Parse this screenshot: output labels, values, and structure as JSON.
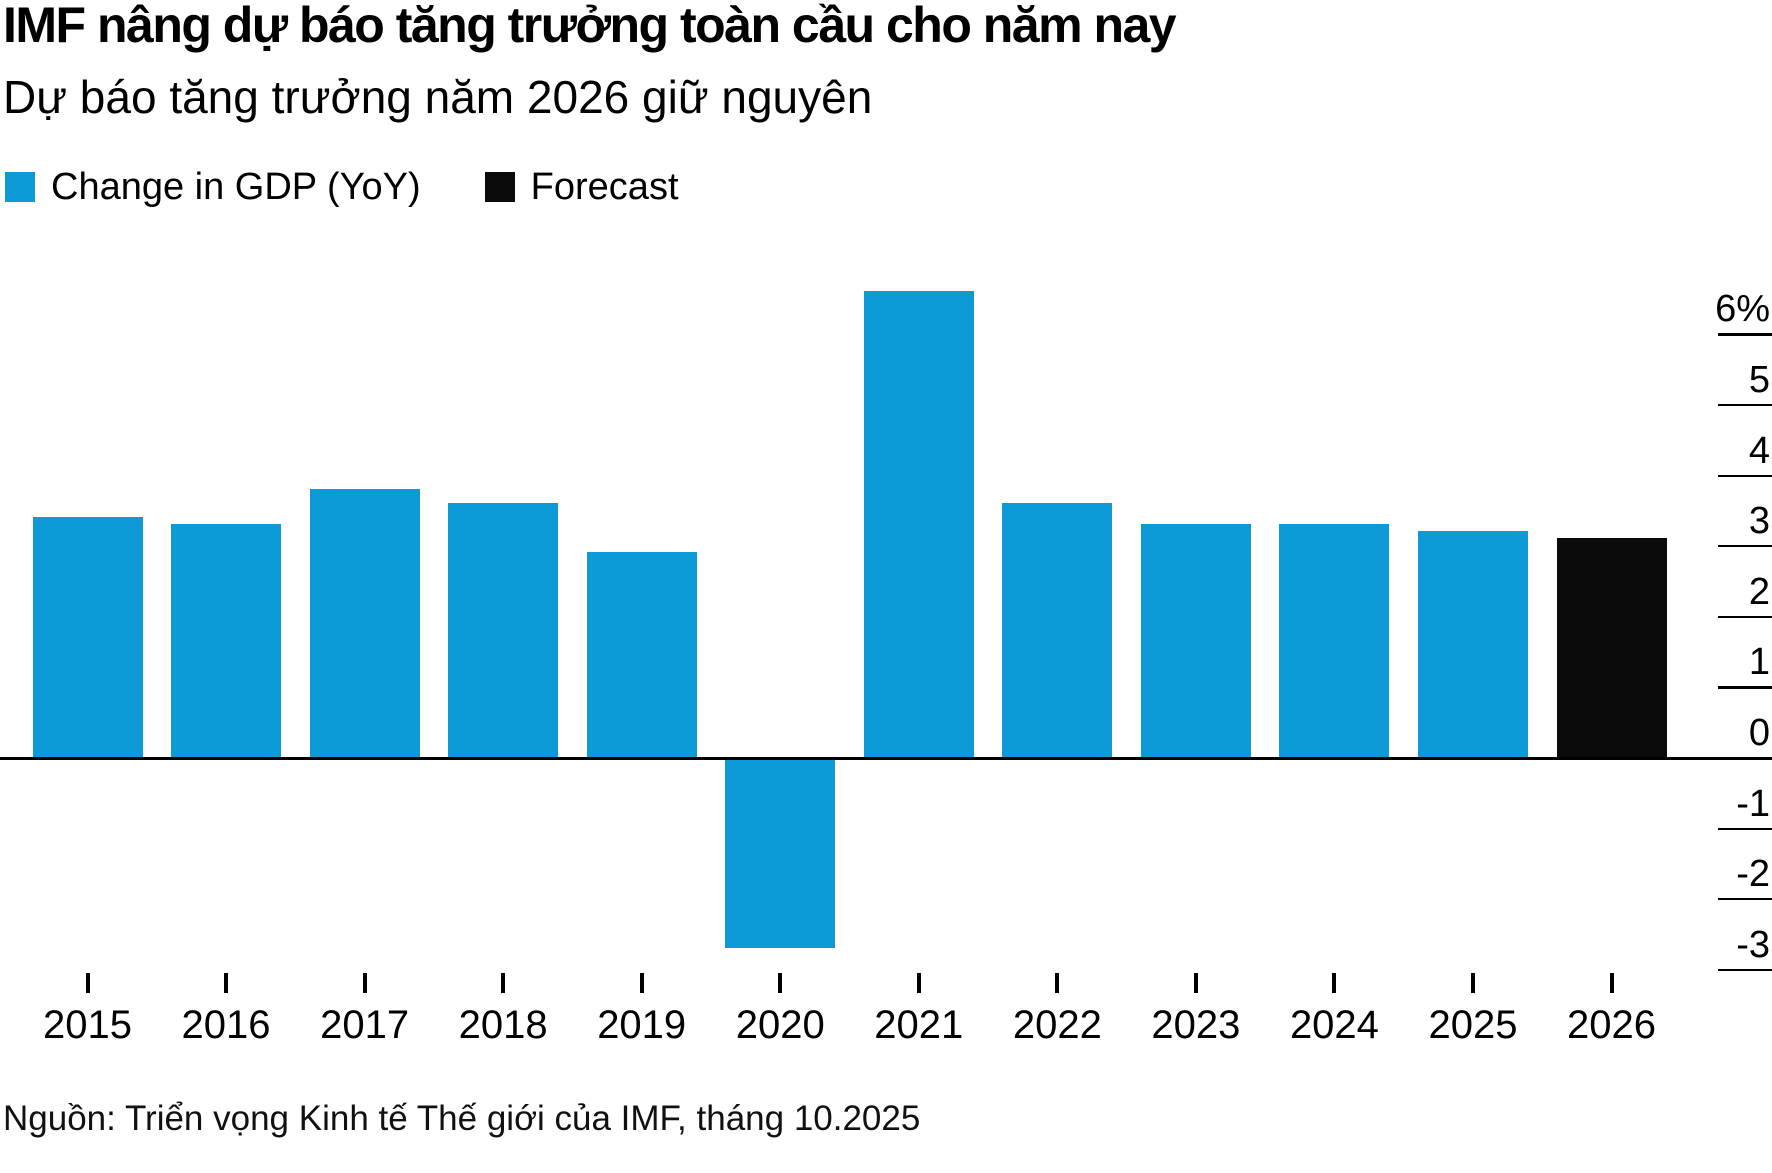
{
  "header": {
    "title": "IMF nâng dự báo tăng trưởng toàn cầu cho năm nay",
    "subtitle": "Dự báo tăng trưởng năm 2026 giữ nguyên"
  },
  "legend": {
    "items": [
      {
        "label": "Change in GDP (YoY)",
        "color": "#0d9ad7"
      },
      {
        "label": "Forecast",
        "color": "#0a0a0a"
      }
    ]
  },
  "colors": {
    "actual_bar": "#0d9ad7",
    "forecast_bar": "#0a0a0a",
    "axis": "#000000"
  },
  "chart_data": {
    "type": "bar",
    "title": "IMF nâng dự báo tăng trưởng toàn cầu cho năm nay",
    "subtitle": "Dự báo tăng trưởng năm 2026 giữ nguyên",
    "categories": [
      "2015",
      "2016",
      "2017",
      "2018",
      "2019",
      "2020",
      "2021",
      "2022",
      "2023",
      "2024",
      "2025",
      "2026"
    ],
    "series": [
      {
        "name": "Change in GDP (YoY)",
        "color": "#0d9ad7",
        "values": [
          3.4,
          3.3,
          3.8,
          3.6,
          2.9,
          -2.7,
          6.6,
          3.6,
          3.3,
          3.3,
          3.2,
          null
        ]
      },
      {
        "name": "Forecast",
        "color": "#0a0a0a",
        "values": [
          null,
          null,
          null,
          null,
          null,
          null,
          null,
          null,
          null,
          null,
          null,
          3.1
        ]
      }
    ],
    "xlabel": "",
    "ylabel": "",
    "ylim": [
      -3,
      7.2
    ],
    "y_axis": {
      "side": "right",
      "tick_values": [
        6,
        5,
        4,
        3,
        2,
        1,
        0,
        -1,
        -2,
        -3
      ],
      "tick_labels": [
        "6%",
        "5",
        "4",
        "3",
        "2",
        "1",
        "0",
        "-1",
        "-2",
        "-3"
      ]
    },
    "grid": "off",
    "legend_position": "top-left"
  },
  "source": "Nguồn: Triển vọng Kinh tế Thế giới của IMF, tháng 10.2025"
}
